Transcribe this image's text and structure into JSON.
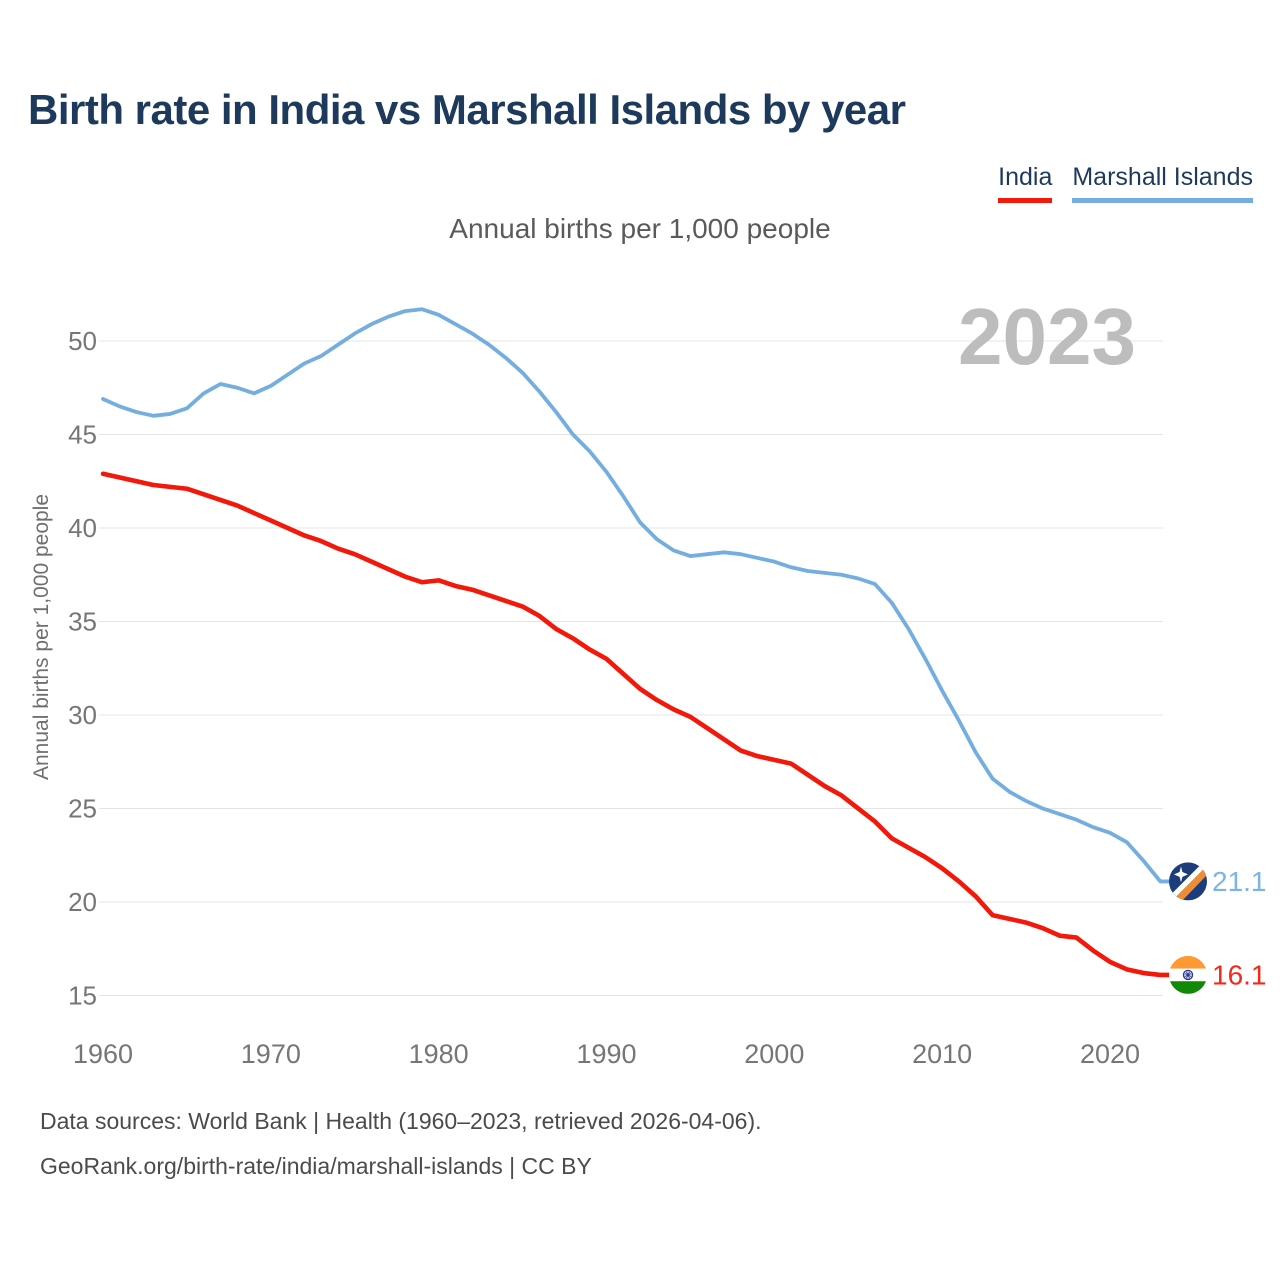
{
  "page": {
    "title": "Birth rate in India vs Marshall Islands by year",
    "watermark_year": "2023"
  },
  "legend": [
    {
      "label": "India",
      "color": "#f2180a"
    },
    {
      "label": "Marshall Islands",
      "color": "#74aee0"
    }
  ],
  "subtitle": "Annual births per 1,000 people",
  "axes": {
    "y_label": "Annual births per 1,000 people",
    "y_ticks": [
      15,
      20,
      25,
      30,
      35,
      40,
      45,
      50
    ],
    "x_ticks": [
      1960,
      1970,
      1980,
      1990,
      2000,
      2010,
      2020
    ],
    "grid_color": "#e4e4e4",
    "tick_color": "#767676"
  },
  "footer": {
    "line1": "Data sources: World Bank | Health (1960–2023, retrieved 2026-04-06).",
    "line2": "GeoRank.org/birth-rate/india/marshall-islands | CC BY"
  },
  "chart_data": {
    "type": "line",
    "title": "Birth rate in India vs Marshall Islands by year",
    "subtitle": "Annual births per 1,000 people",
    "xlabel": "",
    "ylabel": "Annual births per 1,000 people",
    "xlim": [
      1960,
      2023
    ],
    "ylim": [
      15,
      52
    ],
    "grid": "horizontal",
    "legend_position": "top-right",
    "x": [
      1960,
      1961,
      1962,
      1963,
      1964,
      1965,
      1966,
      1967,
      1968,
      1969,
      1970,
      1971,
      1972,
      1973,
      1974,
      1975,
      1976,
      1977,
      1978,
      1979,
      1980,
      1981,
      1982,
      1983,
      1984,
      1985,
      1986,
      1987,
      1988,
      1989,
      1990,
      1991,
      1992,
      1993,
      1994,
      1995,
      1996,
      1997,
      1998,
      1999,
      2000,
      2001,
      2002,
      2003,
      2004,
      2005,
      2006,
      2007,
      2008,
      2009,
      2010,
      2011,
      2012,
      2013,
      2014,
      2015,
      2016,
      2017,
      2018,
      2019,
      2020,
      2021,
      2022,
      2023
    ],
    "series": [
      {
        "name": "India",
        "color": "#f2180a",
        "label_color": "#f3281b",
        "end_label": "16.1",
        "flag_icon": "india-flag-icon",
        "values": [
          42.9,
          42.7,
          42.5,
          42.3,
          42.2,
          42.1,
          41.8,
          41.5,
          41.2,
          40.8,
          40.4,
          40.0,
          39.6,
          39.3,
          38.9,
          38.6,
          38.2,
          37.8,
          37.4,
          37.1,
          37.2,
          36.9,
          36.7,
          36.4,
          36.1,
          35.8,
          35.3,
          34.6,
          34.1,
          33.5,
          33.0,
          32.2,
          31.4,
          30.8,
          30.3,
          29.9,
          29.3,
          28.7,
          28.1,
          27.8,
          27.6,
          27.4,
          26.8,
          26.2,
          25.7,
          25.0,
          24.3,
          23.4,
          22.9,
          22.4,
          21.8,
          21.1,
          20.3,
          19.3,
          19.1,
          18.9,
          18.6,
          18.2,
          18.1,
          17.4,
          16.8,
          16.4,
          16.2,
          16.1
        ]
      },
      {
        "name": "Marshall Islands",
        "color": "#74aee0",
        "label_color": "#7db4e6",
        "end_label": "21.1",
        "flag_icon": "marshall-islands-flag-icon",
        "values": [
          46.9,
          46.5,
          46.2,
          46.0,
          46.1,
          46.4,
          47.2,
          47.7,
          47.5,
          47.2,
          47.6,
          48.2,
          48.8,
          49.2,
          49.8,
          50.4,
          50.9,
          51.3,
          51.6,
          51.7,
          51.4,
          50.9,
          50.4,
          49.8,
          49.1,
          48.3,
          47.3,
          46.2,
          45.0,
          44.1,
          43.0,
          41.7,
          40.3,
          39.4,
          38.8,
          38.5,
          38.6,
          38.7,
          38.6,
          38.4,
          38.2,
          37.9,
          37.7,
          37.6,
          37.5,
          37.3,
          37.0,
          36.0,
          34.6,
          33.0,
          31.3,
          29.7,
          28.0,
          26.6,
          25.9,
          25.4,
          25.0,
          24.7,
          24.4,
          24.0,
          23.7,
          23.2,
          22.2,
          21.1
        ]
      }
    ]
  }
}
